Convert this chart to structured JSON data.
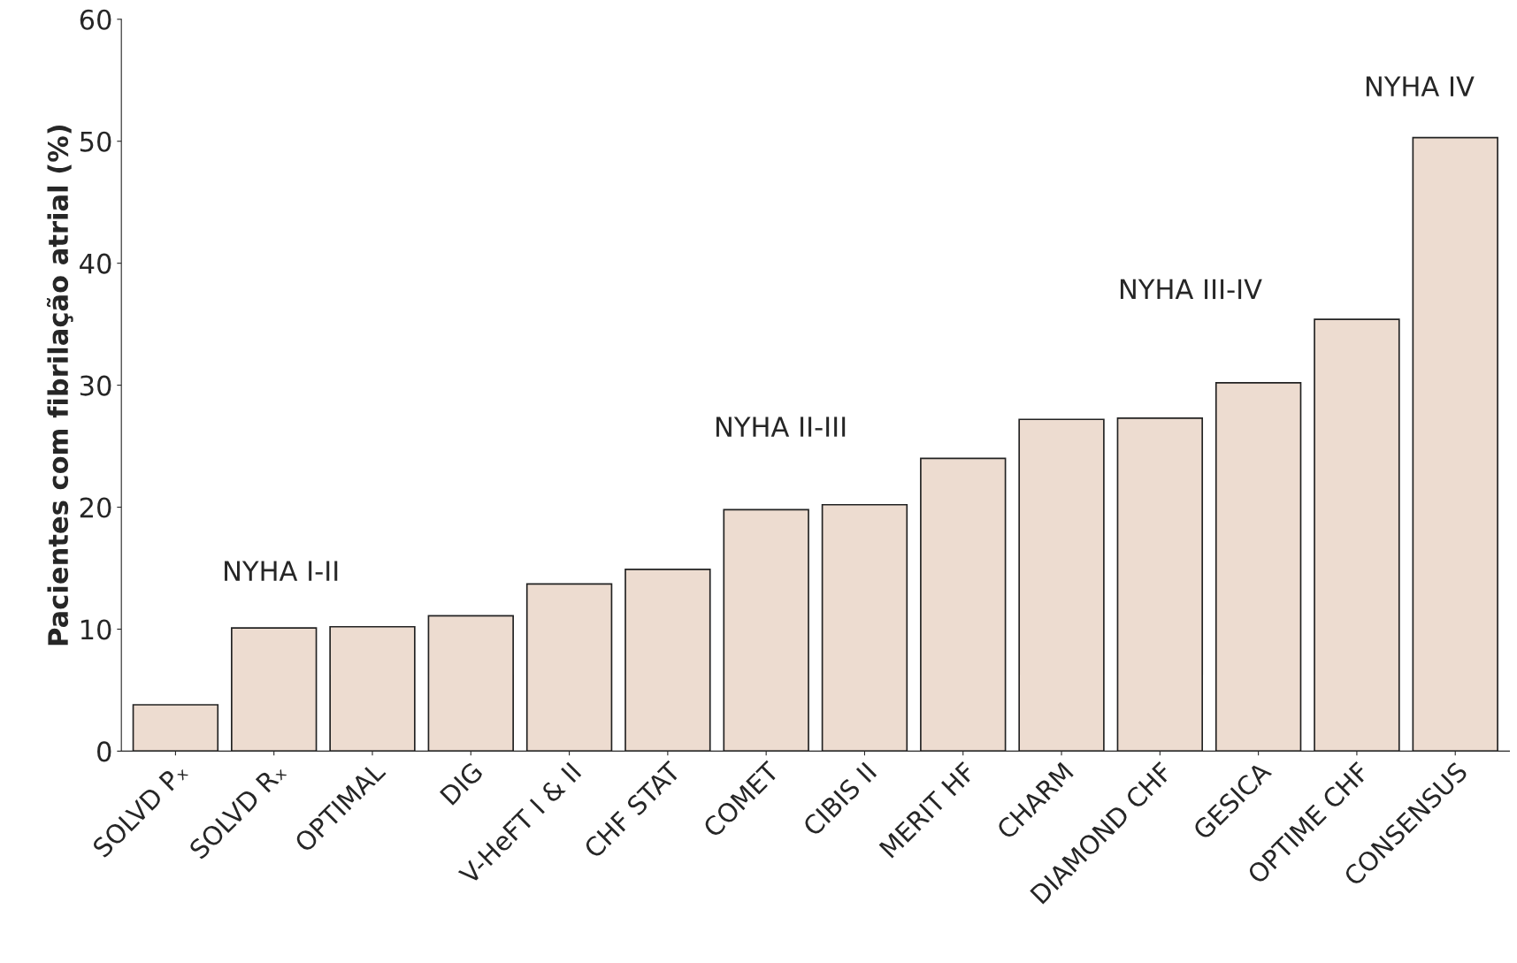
{
  "chart_data": {
    "type": "bar",
    "ylabel": "Pacientes com fibrilação atrial (%)",
    "categories": [
      "SOLVD Pₓ",
      "SOLVD Rₓ",
      "OPTIMAL",
      "DIG",
      "V-HeFT I & II",
      "CHF STAT",
      "COMET",
      "CIBIS II",
      "MERIT HF",
      "CHARM",
      "DIAMOND CHF",
      "GESICA",
      "OPTIME CHF",
      "CONSENSUS"
    ],
    "values": [
      3.8,
      10.1,
      10.2,
      11.1,
      13.7,
      14.9,
      19.8,
      20.2,
      24,
      27.2,
      27.3,
      30.2,
      35.4,
      50.3
    ],
    "color": "#eddcd0",
    "ylim": [
      0,
      60
    ],
    "yticks": [
      0,
      10,
      20,
      30,
      40,
      50,
      60
    ],
    "grid": false,
    "annotations": [
      "NYHA I-II",
      "NYHA II-III",
      "NYHA III-IV",
      "NYHA IV"
    ]
  }
}
